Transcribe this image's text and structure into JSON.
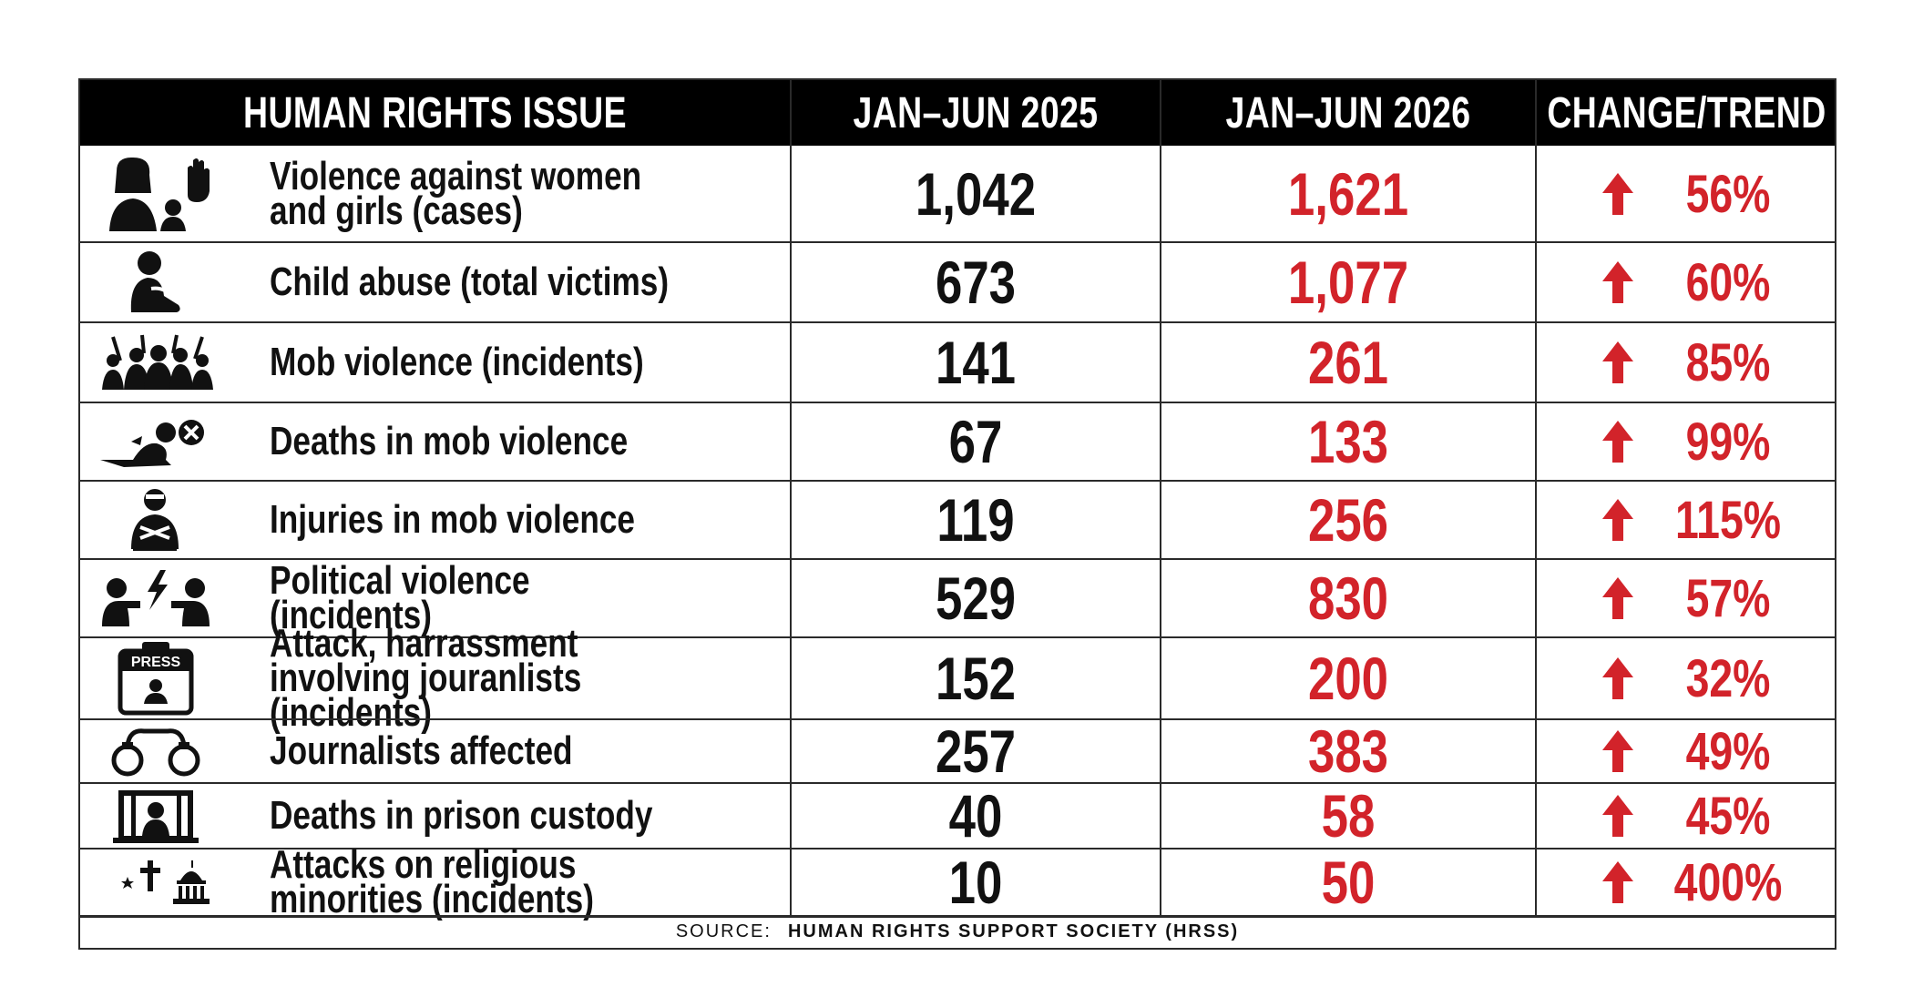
{
  "colors": {
    "header_bg": "#000000",
    "header_text": "#ffffff",
    "value_2026": "#d2232a",
    "trend": "#d2232a"
  },
  "header": {
    "issue": "HUMAN RIGHTS ISSUE",
    "col2025": "JAN–JUN 2025",
    "col2026": "JAN–JUN 2026",
    "trend": "CHANGE/TREND"
  },
  "rows": [
    {
      "icon": "woman-hand-stop-icon",
      "label": "Violence against women and girls (cases)",
      "v2025": "1,042",
      "v2026": "1,621",
      "change": "56%",
      "trend_icon": "up-arrow-icon"
    },
    {
      "icon": "child-sitting-icon",
      "label": "Child abuse (total victims)",
      "v2025": "673",
      "v2026": "1,077",
      "change": "60%",
      "trend_icon": "up-arrow-icon"
    },
    {
      "icon": "mob-crowd-icon",
      "label": "Mob violence (incidents)",
      "v2025": "141",
      "v2026": "261",
      "change": "85%",
      "trend_icon": "up-arrow-icon"
    },
    {
      "icon": "fallen-person-icon",
      "label": "Deaths in mob violence",
      "v2025": "67",
      "v2026": "133",
      "change": "99%",
      "trend_icon": "up-arrow-icon"
    },
    {
      "icon": "injured-person-icon",
      "label": "Injuries in mob violence",
      "v2025": "119",
      "v2026": "256",
      "change": "115%",
      "trend_icon": "up-arrow-icon"
    },
    {
      "icon": "political-clash-icon",
      "label": "Political violence (incidents)",
      "v2025": "529",
      "v2026": "830",
      "change": "57%",
      "trend_icon": "up-arrow-icon"
    },
    {
      "icon": "press-badge-icon",
      "label": "Attack, harrassment involving jouranlists (incidents)",
      "v2025": "152",
      "v2026": "200",
      "change": "32%",
      "trend_icon": "up-arrow-icon"
    },
    {
      "icon": "handcuffs-icon",
      "label": "Journalists affected",
      "v2025": "257",
      "v2026": "383",
      "change": "49%",
      "trend_icon": "up-arrow-icon"
    },
    {
      "icon": "prison-bars-icon",
      "label": "Deaths in prison custody",
      "v2025": "40",
      "v2026": "58",
      "change": "45%",
      "trend_icon": "up-arrow-icon"
    },
    {
      "icon": "religious-symbols-icon",
      "label": "Attacks on religious minorities (incidents)",
      "v2025": "10",
      "v2026": "50",
      "change": "400%",
      "trend_icon": "up-arrow-icon"
    }
  ],
  "source": {
    "prefix": "SOURCE:",
    "name": "HUMAN RIGHTS SUPPORT SOCIETY (HRSS)"
  },
  "chart_data": {
    "type": "table",
    "columns": [
      "HUMAN RIGHTS ISSUE",
      "JAN–JUN 2025",
      "JAN–JUN 2026",
      "CHANGE/TREND"
    ],
    "rows": [
      [
        "Violence against women and girls (cases)",
        1042,
        1621,
        "56%"
      ],
      [
        "Child abuse (total victims)",
        673,
        1077,
        "60%"
      ],
      [
        "Mob violence (incidents)",
        141,
        261,
        "85%"
      ],
      [
        "Deaths in mob violence",
        67,
        133,
        "99%"
      ],
      [
        "Injuries in mob violence",
        119,
        256,
        "115%"
      ],
      [
        "Political violence (incidents)",
        529,
        830,
        "57%"
      ],
      [
        "Attack, harrassment involving jouranlists (incidents)",
        152,
        200,
        "32%"
      ],
      [
        "Journalists affected",
        257,
        383,
        "49%"
      ],
      [
        "Deaths in prison custody",
        40,
        58,
        "45%"
      ],
      [
        "Attacks on religious minorities (incidents)",
        10,
        50,
        "400%"
      ]
    ]
  }
}
